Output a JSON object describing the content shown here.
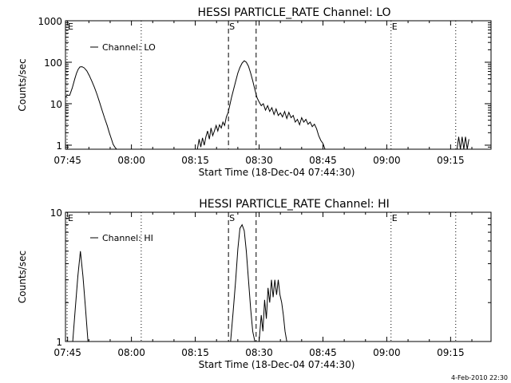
{
  "footer": {
    "timestamp": "4-Feb-2010 22:30"
  },
  "chart_data": [
    {
      "type": "line",
      "title": "HESSI PARTICLE_RATE Channel: LO",
      "xlabel": "Start Time (18-Dec-04 07:44:30)",
      "ylabel": "Counts/sec",
      "y_scale": "log",
      "ylim": [
        0.8,
        1000
      ],
      "xlim_minutes": [
        0,
        100
      ],
      "xtick_labels": [
        "07:45",
        "08:00",
        "08:15",
        "08:30",
        "08:45",
        "09:00",
        "09:15"
      ],
      "xtick_minutes": [
        0.5,
        15.5,
        30.5,
        45.5,
        60.5,
        75.5,
        90.5
      ],
      "ytick_labels": [
        "1",
        "10",
        "100",
        "1000"
      ],
      "ytick_values": [
        1,
        10,
        100,
        1000
      ],
      "legend": {
        "label": "Channel: LO",
        "placement": "top-left"
      },
      "markers": [
        {
          "label": "E",
          "minutes": 0.0,
          "style": "dotted"
        },
        {
          "label": "",
          "minutes": 17.8,
          "style": "dotted"
        },
        {
          "label": "S",
          "minutes": 38.3,
          "style": "dashed"
        },
        {
          "label": "",
          "minutes": 44.8,
          "style": "dashed"
        },
        {
          "label": "E",
          "minutes": 76.5,
          "style": "dotted"
        },
        {
          "label": "",
          "minutes": 91.7,
          "style": "dotted"
        }
      ],
      "series": [
        {
          "name": "Channel: LO",
          "segments": [
            {
              "x": [
                0,
                0.4,
                1.0,
                1.6,
                2.2,
                2.6,
                3.0,
                3.4,
                3.9,
                4.4,
                5.0,
                5.6,
                6.2,
                6.8,
                7.4,
                8.0,
                8.6,
                9.2,
                9.8,
                10.3,
                10.8,
                11.2,
                11.6,
                12.0
              ],
              "y": [
                14,
                16,
                16,
                24,
                40,
                55,
                68,
                77,
                78,
                73,
                62,
                48,
                35,
                25,
                17,
                11,
                7,
                4.5,
                3,
                2,
                1.4,
                1.05,
                0.9,
                0.8
              ]
            },
            {
              "x": [
                31.0,
                31.4,
                31.8,
                32.2,
                32.6,
                33.0,
                33.4,
                33.8,
                34.2,
                34.6,
                35.0,
                35.4,
                35.8,
                36.2,
                36.6,
                37.0,
                37.4,
                37.8,
                38.2,
                38.6,
                39.0,
                39.5,
                40.0,
                40.5,
                41.0,
                41.5,
                42.0,
                42.5,
                43.0,
                43.5,
                44.0,
                44.5,
                45.0,
                45.5,
                46.0,
                46.5,
                47.0,
                47.5,
                48.0,
                48.5,
                49.0,
                49.5,
                50.0,
                50.5,
                51.0,
                51.5,
                52.0,
                52.5,
                53.0,
                53.5,
                54.0,
                54.5,
                55.0,
                55.5,
                56.0,
                56.5,
                57.0,
                57.5,
                58.0,
                58.5,
                59.0,
                59.5,
                60.0,
                60.5,
                61.0
              ],
              "y": [
                0.8,
                1.4,
                0.9,
                1.5,
                1.0,
                1.6,
                2.2,
                1.4,
                2.6,
                1.7,
                2.2,
                3.0,
                2.2,
                3.1,
                2.6,
                3.6,
                3.0,
                4.8,
                6,
                9,
                14,
                22,
                35,
                55,
                75,
                95,
                108,
                100,
                80,
                55,
                36,
                22,
                14,
                11,
                9,
                10,
                7,
                9,
                6.5,
                8,
                5.5,
                7.5,
                5.2,
                6,
                4.8,
                6.5,
                4.4,
                6.2,
                4.6,
                5.2,
                3.6,
                4.2,
                3.1,
                4.6,
                3.6,
                4.2,
                3.2,
                3.6,
                2.8,
                3.2,
                2.5,
                1.7,
                1.3,
                1.1,
                0.8
              ]
            },
            {
              "x": [
                92.0,
                92.4,
                92.8,
                93.2,
                93.6,
                94.0,
                94.4,
                94.8
              ],
              "y": [
                0.8,
                1.6,
                0.8,
                1.6,
                0.8,
                1.6,
                0.8,
                1.4
              ]
            }
          ]
        }
      ]
    },
    {
      "type": "line",
      "title": "HESSI PARTICLE_RATE Channel: HI",
      "xlabel": "Start Time (18-Dec-04 07:44:30)",
      "ylabel": "Counts/sec",
      "y_scale": "log",
      "ylim": [
        1,
        10
      ],
      "xlim_minutes": [
        0,
        100
      ],
      "xtick_labels": [
        "07:45",
        "08:00",
        "08:15",
        "08:30",
        "08:45",
        "09:00",
        "09:15"
      ],
      "xtick_minutes": [
        0.5,
        15.5,
        30.5,
        45.5,
        60.5,
        75.5,
        90.5
      ],
      "ytick_labels": [
        "1",
        "10"
      ],
      "ytick_values": [
        1,
        10
      ],
      "legend": {
        "label": "Channel: HI",
        "placement": "top-left"
      },
      "markers": [
        {
          "label": "E",
          "minutes": 0.0,
          "style": "dotted"
        },
        {
          "label": "",
          "minutes": 17.8,
          "style": "dotted"
        },
        {
          "label": "S",
          "minutes": 38.3,
          "style": "dashed"
        },
        {
          "label": "",
          "minutes": 44.8,
          "style": "dashed"
        },
        {
          "label": "E",
          "minutes": 76.5,
          "style": "dotted"
        },
        {
          "label": "",
          "minutes": 91.7,
          "style": "dotted"
        }
      ],
      "series": [
        {
          "name": "Channel: HI",
          "segments": [
            {
              "x": [
                1.7,
                2.3,
                2.9,
                3.5,
                4.1,
                4.7,
                5.3
              ],
              "y": [
                1.0,
                1.8,
                3.2,
                5.0,
                3.2,
                1.8,
                1.0
              ]
            },
            {
              "x": [
                38.8,
                39.4,
                40.0,
                40.5,
                41.0,
                41.5,
                42.0,
                42.5,
                43.0,
                43.5,
                44.0,
                44.5
              ],
              "y": [
                1.0,
                1.7,
                3.0,
                5.2,
                7.5,
                8.0,
                7.2,
                5.0,
                3.0,
                1.8,
                1.2,
                1.0
              ]
            },
            {
              "x": [
                45.5,
                46.0,
                46.4,
                46.8,
                47.2,
                47.6,
                48.0,
                48.4,
                48.8,
                49.2,
                49.6,
                50.0,
                50.4,
                50.8,
                51.2,
                51.6,
                52.0
              ],
              "y": [
                1.0,
                1.6,
                1.2,
                2.1,
                1.5,
                2.6,
                2.0,
                3.0,
                2.2,
                3.0,
                2.3,
                3.0,
                2.3,
                2.0,
                1.6,
                1.2,
                1.0
              ]
            }
          ]
        }
      ]
    }
  ]
}
